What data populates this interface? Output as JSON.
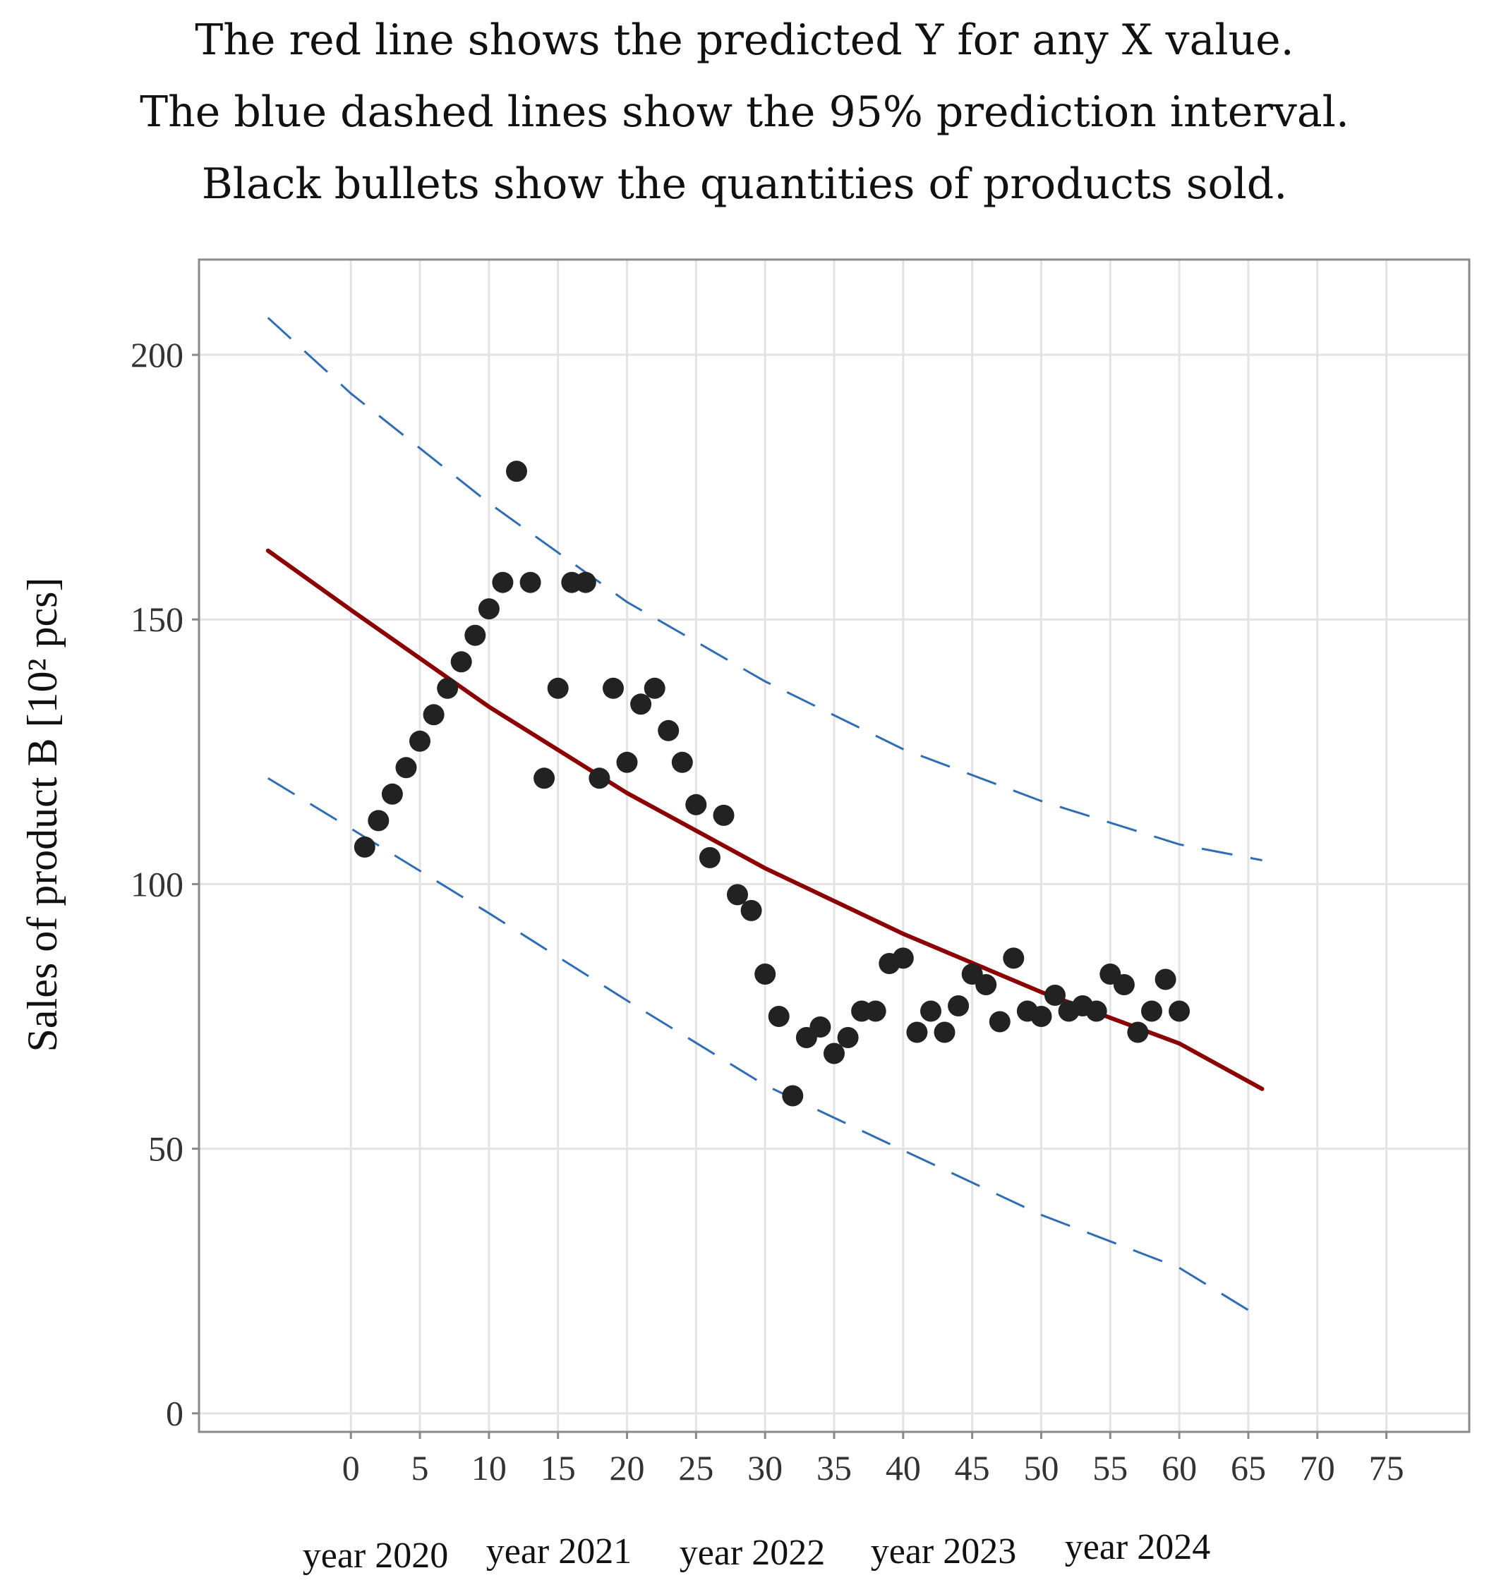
{
  "title_lines": [
    "The red line shows the predicted Y for any  X value.",
    "The blue dashed lines show the 95% prediction interval.",
    "Black bullets show the quantities of products sold."
  ],
  "colors": {
    "fit": "#8b0000",
    "interval": "#2f6db5",
    "points": "#222222",
    "grid": "#e3e3e3",
    "frame": "#8a8a8a"
  },
  "chart_data": {
    "type": "scatter",
    "title": "",
    "xlabel": "",
    "ylabel": "Sales of product  B [10² pcs]",
    "xlim": [
      -11,
      81
    ],
    "ylim": [
      -3.5,
      218
    ],
    "xticks": [
      0,
      5,
      10,
      15,
      20,
      25,
      30,
      35,
      40,
      45,
      50,
      55,
      60,
      65,
      70,
      75
    ],
    "yticks": [
      0,
      50,
      100,
      150,
      200
    ],
    "grid": true,
    "year_labels": [
      "year 2020",
      "year 2021",
      "year 2022",
      "year 2023",
      "year 2024"
    ],
    "series": [
      {
        "name": "Sales",
        "kind": "points",
        "x": [
          1,
          2,
          3,
          4,
          5,
          6,
          7,
          8,
          9,
          10,
          11,
          12,
          13,
          14,
          15,
          16,
          17,
          18,
          19,
          20,
          21,
          22,
          23,
          24,
          25,
          26,
          27,
          28,
          29,
          30,
          31,
          32,
          33,
          34,
          35,
          36,
          37,
          38,
          39,
          40,
          41,
          42,
          43,
          44,
          45,
          46,
          47,
          48,
          49,
          50,
          51,
          52,
          53,
          54,
          55,
          56,
          57,
          58,
          59,
          60
        ],
        "y": [
          107,
          112,
          117,
          122,
          127,
          132,
          137,
          142,
          147,
          152,
          157,
          178,
          157,
          120,
          137,
          157,
          157,
          120,
          137,
          123,
          134,
          137,
          129,
          123,
          115,
          105,
          113,
          98,
          95,
          83,
          75,
          60,
          71,
          73,
          68,
          71,
          76,
          76,
          85,
          86,
          72,
          76,
          72,
          77,
          83,
          81,
          74,
          86,
          76,
          75,
          79,
          76,
          77,
          76,
          83,
          81,
          72,
          76,
          82,
          76
        ]
      },
      {
        "name": "Predicted Y",
        "kind": "fit",
        "x": [
          -6,
          0,
          10,
          20,
          30,
          40,
          50,
          60,
          66
        ],
        "y": [
          163,
          151.8,
          133.5,
          117.2,
          103,
          90.6,
          79.6,
          69.9,
          61.3
        ]
      },
      {
        "name": "95% prediction interval upper",
        "kind": "interval",
        "x": [
          -6,
          0,
          10,
          20,
          30,
          40,
          50,
          60,
          66
        ],
        "y": [
          207,
          192.7,
          172,
          153.3,
          138.3,
          125.5,
          115.7,
          107.5,
          104.5
        ]
      },
      {
        "name": "95% prediction interval lower",
        "kind": "interval",
        "x": [
          -6,
          0,
          10,
          20,
          30,
          40,
          50,
          60,
          65
        ],
        "y": [
          120,
          110.5,
          94.5,
          78,
          62,
          49.7,
          37.5,
          27.5,
          19.5
        ]
      }
    ]
  }
}
